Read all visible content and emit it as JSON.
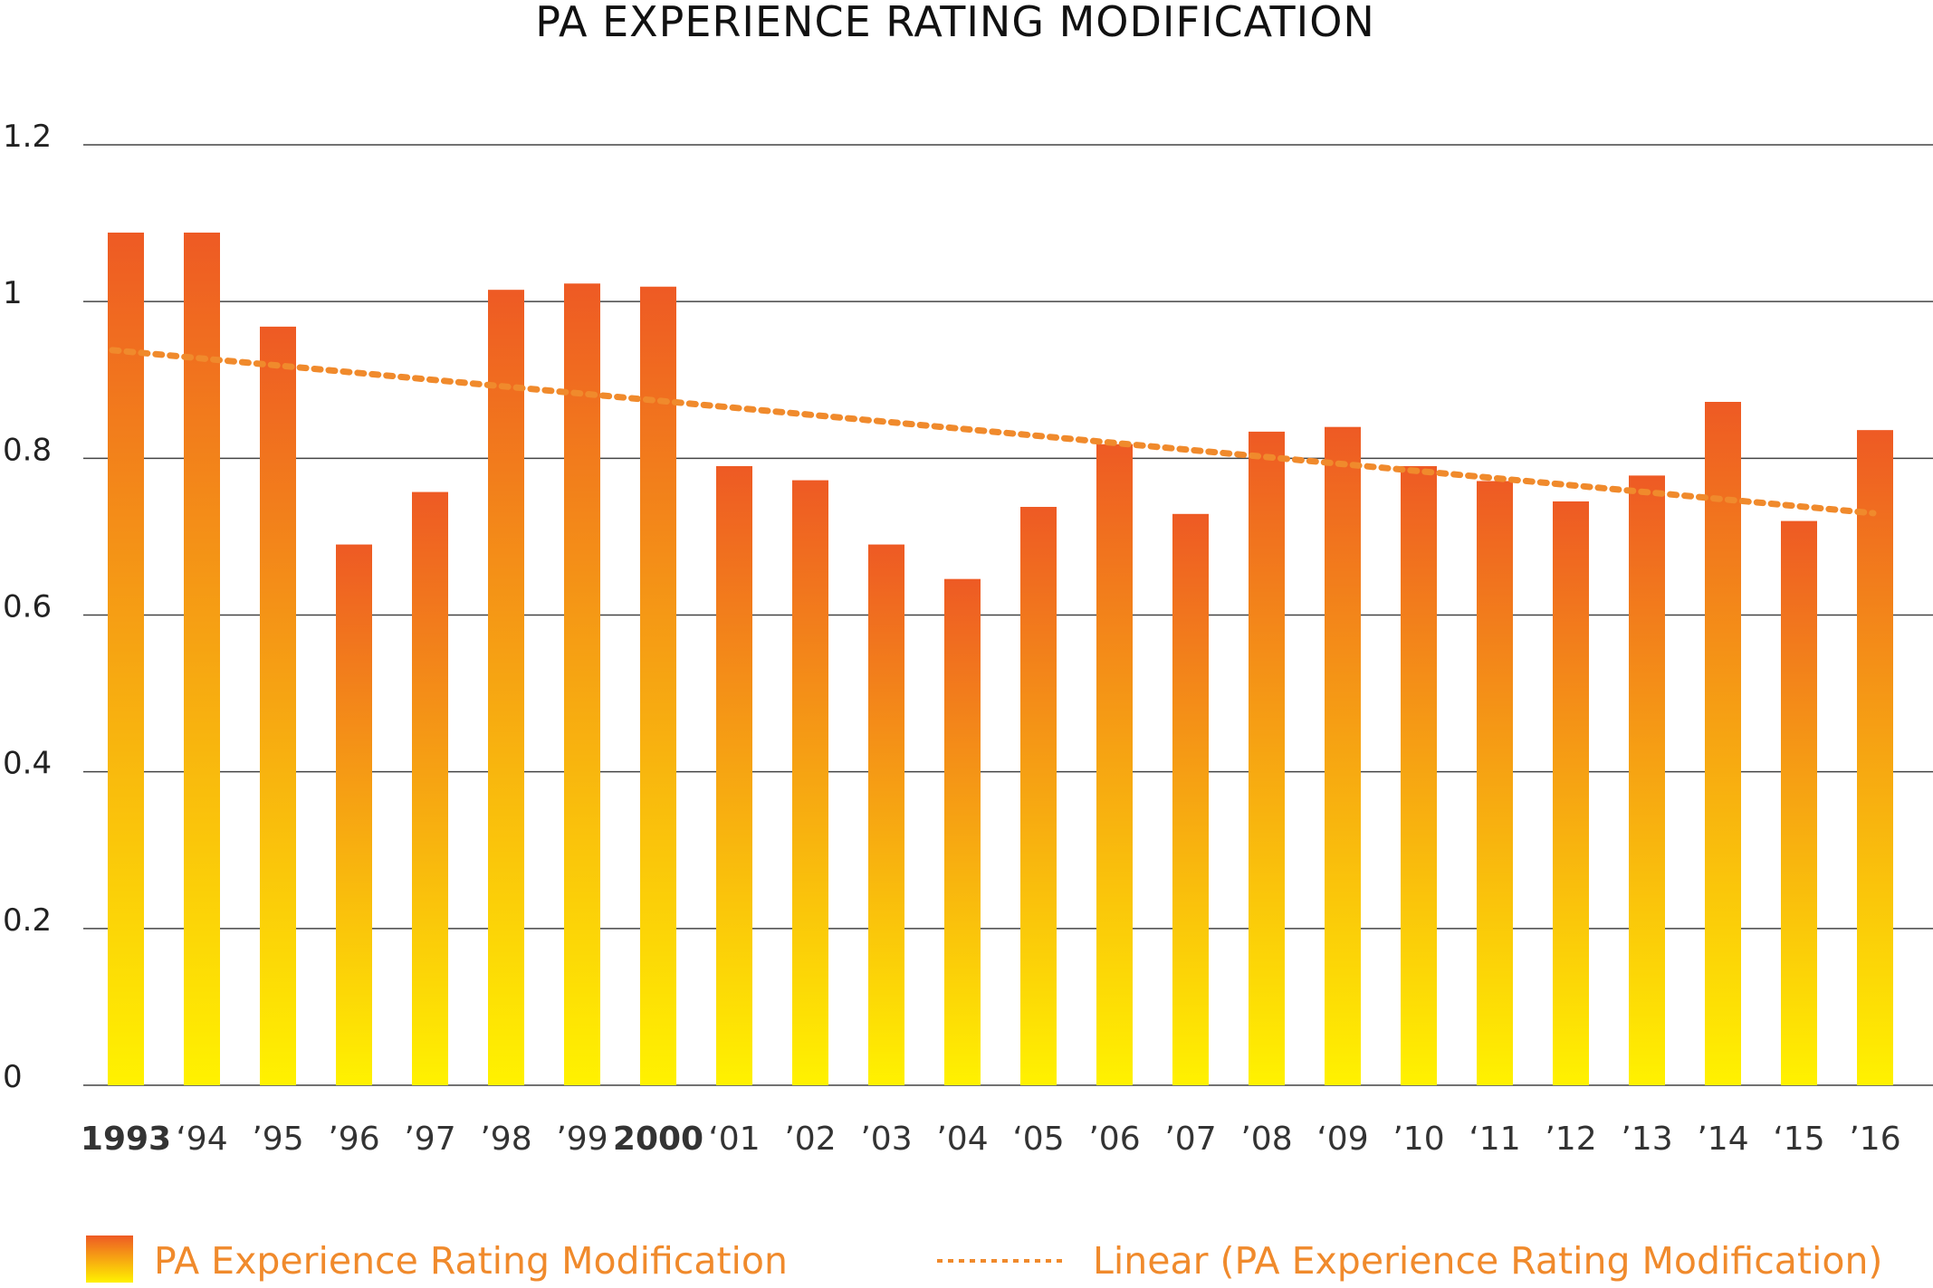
{
  "chart_data": {
    "type": "bar",
    "title": "PA EXPERIENCE RATING MODIFICATION",
    "xlabel": "",
    "ylabel": "",
    "ylim": [
      0,
      1.2
    ],
    "yticks": [
      "0",
      "0.2",
      "0.4",
      "0.6",
      "0.8",
      "1",
      "1.2"
    ],
    "grid": true,
    "legend_position": "bottom",
    "categories": [
      "1993",
      "‘94",
      "’95",
      "’96",
      "’97",
      "’98",
      "’99",
      "2000",
      "‘01",
      "’02",
      "’03",
      "’04",
      "‘05",
      "’06",
      "’07",
      "’08",
      "‘09",
      "’10",
      "‘11",
      "’12",
      "’13",
      "’14",
      "‘15",
      "’16"
    ],
    "bold_categories": [
      "1993",
      "2000"
    ],
    "series": [
      {
        "name": "PA Experience Rating Modification",
        "values": [
          1.088,
          1.088,
          0.968,
          0.69,
          0.757,
          1.015,
          1.023,
          1.019,
          0.79,
          0.772,
          0.69,
          0.646,
          0.738,
          0.818,
          0.729,
          0.834,
          0.84,
          0.79,
          0.771,
          0.745,
          0.778,
          0.872,
          0.72,
          0.836
        ],
        "color_top": "#ee5a24",
        "color_bottom": "#fff200"
      }
    ],
    "trendline": {
      "name": "Linear (PA Experience Rating Modification)",
      "start": 0.938,
      "end": 0.73,
      "color": "#f08a2c"
    }
  }
}
